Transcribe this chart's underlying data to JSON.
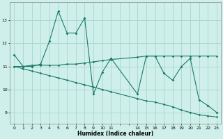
{
  "xlabel": "Humidex (Indice chaleur)",
  "x_values": [
    0,
    1,
    2,
    3,
    4,
    5,
    6,
    7,
    8,
    9,
    10,
    11,
    14,
    15,
    16,
    17,
    18,
    19,
    20,
    21,
    22,
    23
  ],
  "y_main": [
    11.5,
    11.0,
    11.0,
    11.1,
    12.1,
    13.4,
    12.45,
    12.45,
    13.1,
    9.8,
    10.75,
    11.35,
    9.8,
    11.45,
    11.45,
    10.7,
    10.4,
    11.0,
    11.35,
    9.55,
    9.3,
    9.0
  ],
  "y_upper": [
    11.0,
    11.0,
    11.05,
    11.05,
    11.05,
    11.05,
    11.1,
    11.1,
    11.15,
    11.2,
    11.25,
    11.3,
    11.4,
    11.45,
    11.45,
    11.45,
    11.45,
    11.45,
    11.45,
    11.45,
    11.45,
    11.45
  ],
  "y_lower": [
    11.0,
    10.9,
    10.8,
    10.7,
    10.6,
    10.5,
    10.4,
    10.3,
    10.2,
    10.1,
    10.0,
    9.9,
    9.6,
    9.5,
    9.45,
    9.35,
    9.25,
    9.1,
    9.0,
    8.9,
    8.85,
    8.8
  ],
  "line_color": "#1a7a6a",
  "bg_color": "#cff0ea",
  "grid_color": "#aad4cc",
  "ylim": [
    8.5,
    13.8
  ],
  "yticks": [
    9,
    10,
    11,
    12,
    13
  ],
  "xtick_labels": [
    "0",
    "1",
    "2",
    "3",
    "4",
    "5",
    "6",
    "7",
    "8",
    "9",
    "10",
    "11",
    "",
    "",
    "14",
    "15",
    "16",
    "17",
    "18",
    "19",
    "20",
    "21",
    "22",
    "23"
  ],
  "xtick_positions": [
    0,
    1,
    2,
    3,
    4,
    5,
    6,
    7,
    8,
    9,
    10,
    11,
    12,
    13,
    14,
    15,
    16,
    17,
    18,
    19,
    20,
    21,
    22,
    23
  ]
}
